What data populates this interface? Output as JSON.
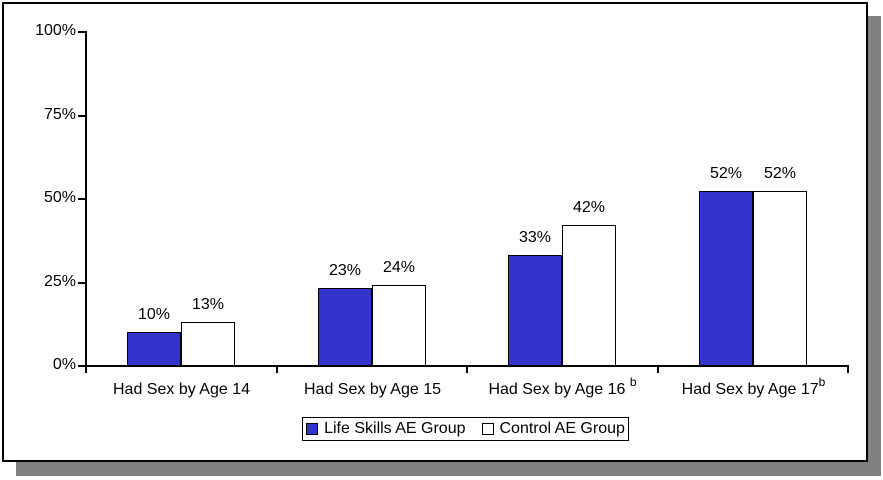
{
  "chart_data": {
    "type": "bar",
    "categories": [
      "Had Sex by Age 14",
      "Had Sex by Age 15",
      "Had Sex by Age 16 ",
      "Had Sex by Age 17"
    ],
    "category_footnotes": [
      "",
      "",
      "b",
      "b"
    ],
    "series": [
      {
        "name": "Life Skills AE Group",
        "color": "#3333CC",
        "values": [
          10,
          23,
          33,
          52
        ]
      },
      {
        "name": "Control AE Group",
        "color": "#FFFFFF",
        "values": [
          13,
          24,
          42,
          52
        ]
      }
    ],
    "value_label_suffix": "%",
    "yticks": [
      {
        "label": "0%",
        "value": 0
      },
      {
        "label": "25%",
        "value": 25
      },
      {
        "label": "50%",
        "value": 50
      },
      {
        "label": "75%",
        "value": 75
      },
      {
        "label": "100%",
        "value": 100
      }
    ],
    "ylim": [
      0,
      100
    ],
    "grid": false,
    "legend_position": "bottom"
  },
  "colors": {
    "series1_fill": "#3333CC",
    "series2_fill": "#FFFFFF",
    "bar_border": "#000000",
    "axis": "#000000",
    "frame_border": "#000000",
    "drop_shadow": "#808080",
    "background": "#FFFFFF"
  }
}
